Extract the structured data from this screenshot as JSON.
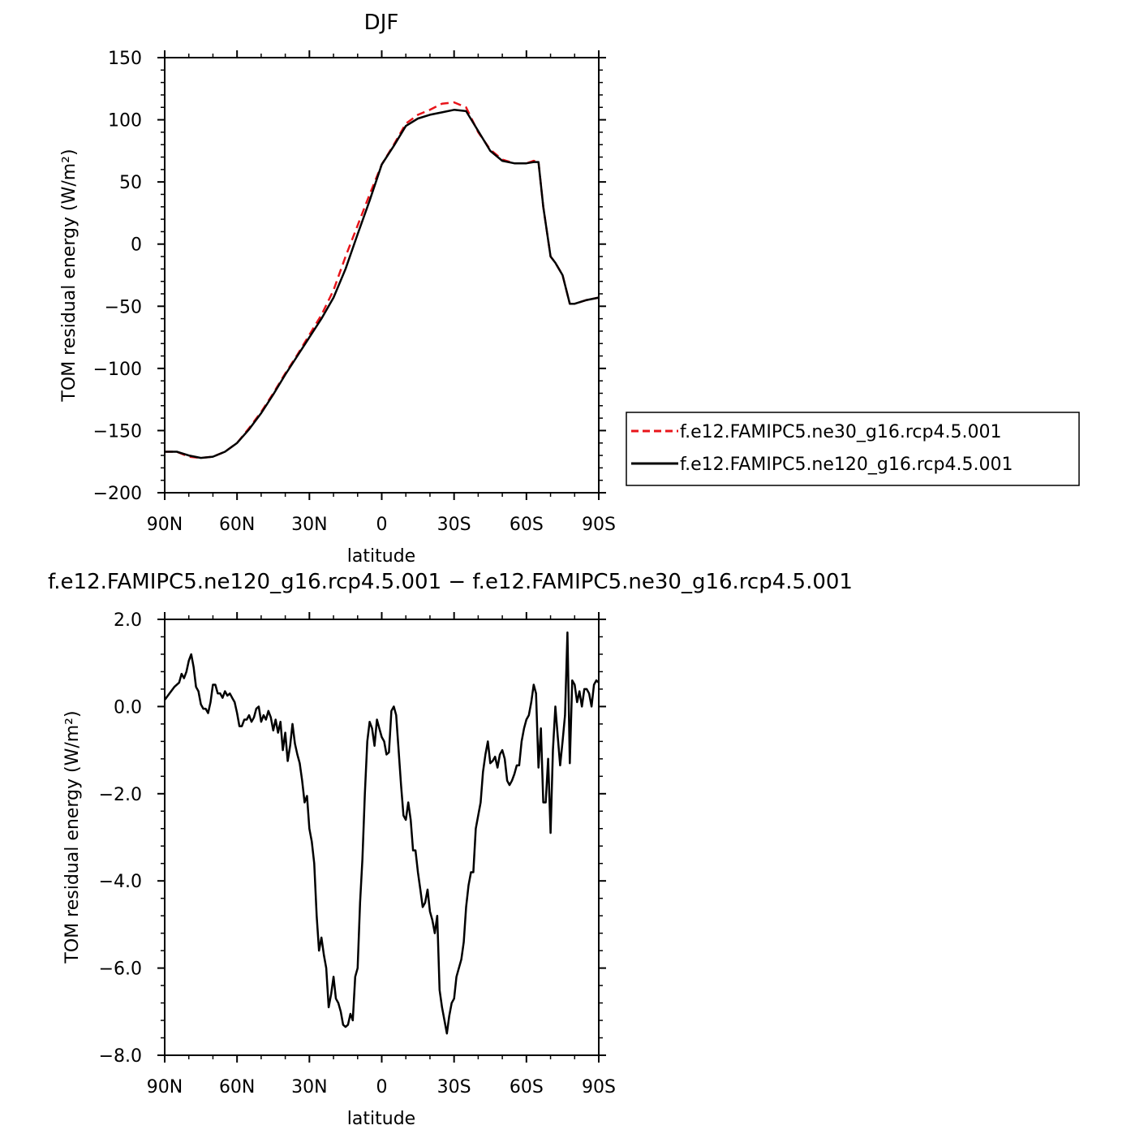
{
  "chart_data": [
    {
      "type": "line",
      "title": "DJF",
      "xlabel": "latitude",
      "ylabel": "TOM residual energy (W/m²)",
      "xlim": [
        -90,
        90
      ],
      "ylim": [
        -200,
        150
      ],
      "x_ticks": [
        {
          "value": -90,
          "label": "90N"
        },
        {
          "value": -60,
          "label": "60N"
        },
        {
          "value": -30,
          "label": "30N"
        },
        {
          "value": 0,
          "label": "0"
        },
        {
          "value": 30,
          "label": "30S"
        },
        {
          "value": 60,
          "label": "60S"
        },
        {
          "value": 90,
          "label": "90S"
        }
      ],
      "y_ticks": [
        {
          "value": 150,
          "label": "150"
        },
        {
          "value": 100,
          "label": "100"
        },
        {
          "value": 50,
          "label": "50"
        },
        {
          "value": 0,
          "label": "0"
        },
        {
          "value": -50,
          "label": "−50"
        },
        {
          "value": -100,
          "label": "−100"
        },
        {
          "value": -150,
          "label": "−150"
        },
        {
          "value": -200,
          "label": "−200"
        }
      ],
      "legend_position": "right",
      "series": [
        {
          "name": "f.e12.FAMIPC5.ne30_g16.rcp4.5.001",
          "color": "#e8141a",
          "style": "dashed",
          "x": [
            -90,
            -85,
            -80,
            -75,
            -70,
            -65,
            -60,
            -55,
            -50,
            -45,
            -40,
            -35,
            -30,
            -25,
            -20,
            -15,
            -10,
            -5,
            0,
            5,
            10,
            15,
            20,
            25,
            30,
            35,
            40,
            45,
            50,
            55,
            60,
            63,
            65,
            67,
            70,
            72,
            75,
            78,
            80,
            85,
            90
          ],
          "y": [
            -167,
            -167,
            -171,
            -172,
            -171,
            -167,
            -160,
            -148,
            -135,
            -120,
            -104,
            -89,
            -73,
            -57,
            -37,
            -10,
            15,
            40,
            64,
            80,
            97,
            104,
            108,
            113,
            114,
            110,
            90,
            76,
            68,
            65,
            65,
            67,
            66,
            30,
            -10,
            -15,
            -25,
            -48,
            -48,
            -45,
            -43
          ]
        },
        {
          "name": "f.e12.FAMIPC5.ne120_g16.rcp4.5.001",
          "color": "#000000",
          "style": "solid",
          "x": [
            -90,
            -85,
            -80,
            -75,
            -70,
            -65,
            -60,
            -55,
            -50,
            -45,
            -40,
            -35,
            -30,
            -25,
            -20,
            -15,
            -10,
            -5,
            0,
            5,
            10,
            15,
            20,
            25,
            30,
            35,
            40,
            45,
            50,
            55,
            60,
            63,
            65,
            67,
            70,
            72,
            75,
            78,
            80,
            85,
            90
          ],
          "y": [
            -167,
            -167,
            -170,
            -172,
            -171,
            -167,
            -160,
            -149,
            -136,
            -121,
            -105,
            -90,
            -75,
            -60,
            -43,
            -20,
            8,
            35,
            64,
            79,
            95,
            101,
            104,
            106,
            108,
            107,
            91,
            75,
            67,
            65,
            65,
            66,
            66,
            30,
            -10,
            -15,
            -25,
            -48,
            -48,
            -45,
            -43
          ]
        }
      ]
    },
    {
      "type": "line",
      "title": "f.e12.FAMIPC5.ne120_g16.rcp4.5.001 − f.e12.FAMIPC5.ne30_g16.rcp4.5.001",
      "xlabel": "latitude",
      "ylabel": "TOM residual energy (W/m²)",
      "xlim": [
        -90,
        90
      ],
      "ylim": [
        -8,
        2
      ],
      "x_ticks": [
        {
          "value": -90,
          "label": "90N"
        },
        {
          "value": -60,
          "label": "60N"
        },
        {
          "value": -30,
          "label": "30N"
        },
        {
          "value": 0,
          "label": "0"
        },
        {
          "value": 30,
          "label": "30S"
        },
        {
          "value": 60,
          "label": "60S"
        },
        {
          "value": 90,
          "label": "90S"
        }
      ],
      "y_ticks": [
        {
          "value": 2,
          "label": "2.0"
        },
        {
          "value": 0,
          "label": "0.0"
        },
        {
          "value": -2,
          "label": "−2.0"
        },
        {
          "value": -4,
          "label": "−4.0"
        },
        {
          "value": -6,
          "label": "−6.0"
        },
        {
          "value": -8,
          "label": "−8.0"
        }
      ],
      "series": [
        {
          "color": "#000000",
          "style": "solid",
          "x": [
            -90,
            -88,
            -86,
            -84,
            -83,
            -82,
            -81,
            -80,
            -79,
            -78,
            -77,
            -76,
            -75,
            -74,
            -73,
            -72,
            -71,
            -70,
            -69,
            -68,
            -67,
            -66,
            -65,
            -64,
            -63,
            -62,
            -61,
            -60,
            -59,
            -58,
            -57,
            -56,
            -55,
            -54,
            -53,
            -52,
            -51,
            -50,
            -49,
            -48,
            -47,
            -46,
            -45,
            -44,
            -43,
            -42,
            -41,
            -40,
            -39,
            -38,
            -37,
            -36,
            -35,
            -34,
            -33,
            -32,
            -31,
            -30,
            -29,
            -28,
            -27,
            -26,
            -25,
            -24,
            -23,
            -22,
            -21,
            -20,
            -19,
            -18,
            -17,
            -16,
            -15,
            -14,
            -13,
            -12,
            -11,
            -10,
            -9,
            -8,
            -7,
            -6,
            -5,
            -4,
            -3,
            -2,
            -1,
            0,
            1,
            2,
            3,
            4,
            5,
            6,
            7,
            8,
            9,
            10,
            11,
            12,
            13,
            14,
            15,
            16,
            17,
            18,
            19,
            20,
            21,
            22,
            23,
            24,
            25,
            26,
            27,
            28,
            29,
            30,
            31,
            32,
            33,
            34,
            35,
            36,
            37,
            38,
            39,
            40,
            41,
            42,
            43,
            44,
            45,
            46,
            47,
            48,
            49,
            50,
            51,
            52,
            53,
            54,
            55,
            56,
            57,
            58,
            59,
            60,
            61,
            62,
            63,
            64,
            65,
            66,
            67,
            68,
            69,
            70,
            71,
            72,
            73,
            74,
            75,
            76,
            77,
            78,
            79,
            80,
            81,
            82,
            83,
            84,
            85,
            86,
            87,
            88,
            89,
            90
          ],
          "y": [
            0.15,
            0.3,
            0.45,
            0.55,
            0.75,
            0.65,
            0.8,
            1.05,
            1.2,
            0.9,
            0.45,
            0.35,
            0.05,
            -0.05,
            -0.05,
            -0.15,
            0.1,
            0.5,
            0.5,
            0.3,
            0.3,
            0.2,
            0.35,
            0.25,
            0.3,
            0.2,
            0.1,
            -0.15,
            -0.45,
            -0.45,
            -0.3,
            -0.3,
            -0.2,
            -0.35,
            -0.25,
            -0.05,
            0,
            -0.35,
            -0.2,
            -0.3,
            -0.1,
            -0.25,
            -0.55,
            -0.3,
            -0.6,
            -0.35,
            -1.0,
            -0.6,
            -1.25,
            -0.9,
            -0.4,
            -0.85,
            -1.1,
            -1.3,
            -1.7,
            -2.2,
            -2.05,
            -2.8,
            -3.1,
            -3.6,
            -4.8,
            -5.6,
            -5.3,
            -5.7,
            -6.0,
            -6.9,
            -6.6,
            -6.2,
            -6.7,
            -6.8,
            -7.0,
            -7.3,
            -7.35,
            -7.3,
            -7.05,
            -7.2,
            -6.2,
            -6.0,
            -4.5,
            -3.5,
            -2.0,
            -0.8,
            -0.35,
            -0.5,
            -0.9,
            -0.3,
            -0.5,
            -0.7,
            -0.8,
            -1.1,
            -1.05,
            -0.1,
            0,
            -0.2,
            -1.0,
            -1.8,
            -2.5,
            -2.6,
            -2.2,
            -2.6,
            -3.3,
            -3.3,
            -3.8,
            -4.2,
            -4.6,
            -4.5,
            -4.2,
            -4.7,
            -4.9,
            -5.2,
            -4.8,
            -6.5,
            -6.9,
            -7.2,
            -7.5,
            -7.1,
            -6.8,
            -6.7,
            -6.2,
            -6.0,
            -5.8,
            -5.4,
            -4.6,
            -4.1,
            -3.8,
            -3.8,
            -2.8,
            -2.5,
            -2.2,
            -1.5,
            -1.1,
            -0.8,
            -1.3,
            -1.25,
            -1.15,
            -1.4,
            -1.1,
            -1.0,
            -1.2,
            -1.7,
            -1.8,
            -1.7,
            -1.55,
            -1.35,
            -1.35,
            -0.8,
            -0.5,
            -0.3,
            -0.2,
            0.1,
            0.5,
            0.3,
            -1.4,
            -0.5,
            -2.2,
            -2.2,
            -1.2,
            -2.9,
            -1.0,
            0.0,
            -0.7,
            -1.35,
            -0.8,
            -0.2,
            1.7,
            -1.3,
            0.6,
            0.5,
            0.1,
            0.35,
            0.0,
            0.4,
            0.4,
            0.3,
            0.0,
            0.5,
            0.6,
            0.55
          ]
        }
      ]
    }
  ]
}
